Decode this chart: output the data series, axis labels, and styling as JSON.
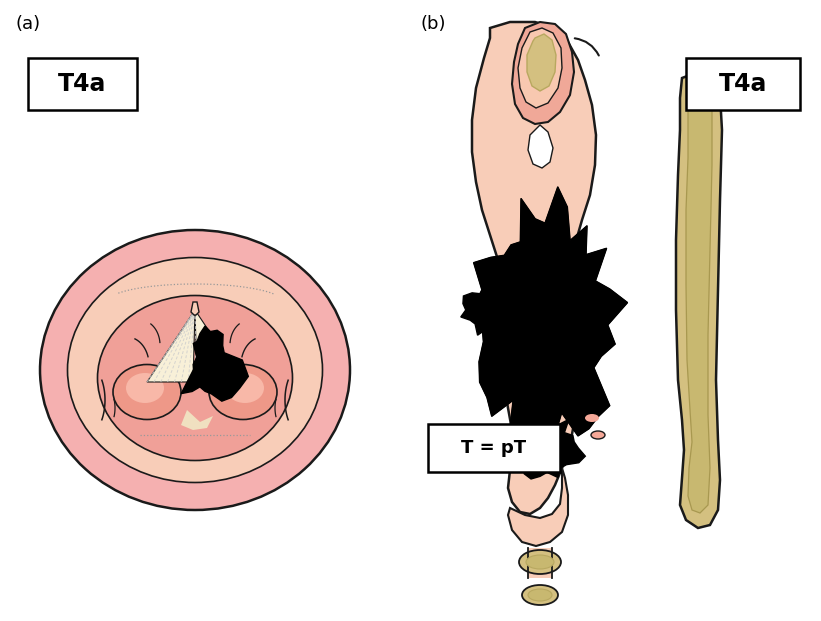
{
  "bg_color": "#ffffff",
  "label_a": "(a)",
  "label_b": "(b)",
  "skin_pink": "#f5b0b0",
  "skin_medium": "#f0a098",
  "skin_light": "#f8cdb8",
  "skin_pale": "#fad8c8",
  "skin_inner": "#e89090",
  "cartilage_tan": "#d4c080",
  "cartilage_mid": "#c8b870",
  "cartilage_dark": "#b8a860",
  "tumor_black": "#000000",
  "outline_color": "#1a1a1a",
  "dotted_color": "#999999",
  "cream": "#f8f0d8",
  "white": "#ffffff",
  "box_T4a_text": "T4a",
  "box_TpT_text": "T = pT"
}
